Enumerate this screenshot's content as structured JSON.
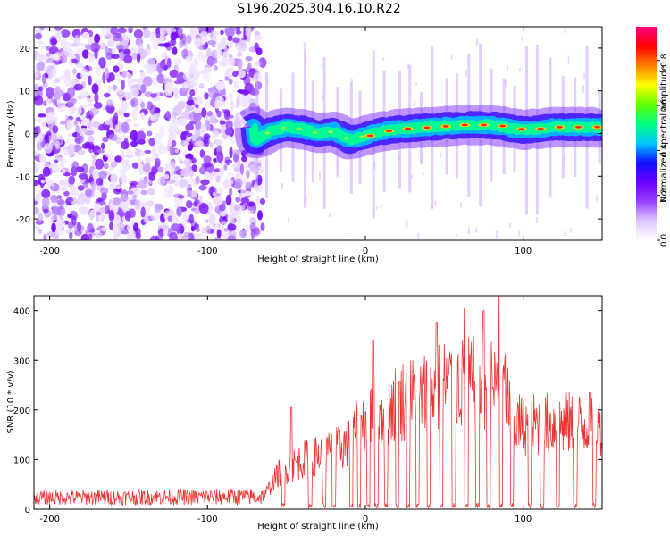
{
  "title": "S196.2025.304.16.10.R22",
  "chart_data": [
    {
      "type": "heatmap",
      "xlabel": "Height of straight line (km)",
      "ylabel": "Frequency (Hz)",
      "xlim": [
        -210,
        150
      ],
      "ylim": [
        -25,
        25
      ],
      "xticks": [
        -200,
        -100,
        0,
        100
      ],
      "yticks": [
        -20,
        -10,
        0,
        10,
        20
      ],
      "colorbar": {
        "label": "Normalized spectral amplitude",
        "range": [
          0.0,
          0.95
        ],
        "ticks": [
          0.0,
          0.2,
          0.4,
          0.6,
          0.8
        ],
        "tick_labels": [
          "0.0",
          "0.2",
          "0.4",
          "0.6",
          "0.8"
        ],
        "colors": [
          "#ffffff",
          "#e0c8ff",
          "#9a40ff",
          "#6a00ff",
          "#1010ff",
          "#00c8ff",
          "#00ff80",
          "#60ff00",
          "#ffff00",
          "#ff8000",
          "#ff0000",
          "#ff0080"
        ]
      },
      "features": {
        "noise_region_x": [
          -210,
          -65
        ],
        "signal_start_x": -72,
        "signal_trace": [
          {
            "x": -70,
            "f": -1.5
          },
          {
            "x": -60,
            "f": 0.5
          },
          {
            "x": -50,
            "f": 1.5
          },
          {
            "x": -40,
            "f": 1.0
          },
          {
            "x": -30,
            "f": 0.0
          },
          {
            "x": -20,
            "f": 0.5
          },
          {
            "x": -10,
            "f": -1.5
          },
          {
            "x": 0,
            "f": -0.5
          },
          {
            "x": 10,
            "f": 0.5
          },
          {
            "x": 20,
            "f": 1.0
          },
          {
            "x": 40,
            "f": 1.5
          },
          {
            "x": 60,
            "f": 2.0
          },
          {
            "x": 80,
            "f": 2.0
          },
          {
            "x": 100,
            "f": 0.8
          },
          {
            "x": 120,
            "f": 1.5
          },
          {
            "x": 140,
            "f": 1.5
          },
          {
            "x": 150,
            "f": 1.5
          }
        ]
      }
    },
    {
      "type": "line",
      "xlabel": "Height of straight line (km)",
      "ylabel": "SNR (10 * v/v)",
      "xlim": [
        -210,
        150
      ],
      "ylim": [
        0,
        430
      ],
      "xticks": [
        -200,
        -100,
        0,
        100
      ],
      "yticks": [
        0,
        100,
        200,
        300,
        400
      ],
      "color": "#ee3333",
      "envelope": [
        {
          "x": -210,
          "snr": 20
        },
        {
          "x": -65,
          "snr": 25
        },
        {
          "x": -55,
          "snr": 80
        },
        {
          "x": -40,
          "snr": 110
        },
        {
          "x": -20,
          "snr": 130
        },
        {
          "x": -10,
          "snr": 150
        },
        {
          "x": 0,
          "snr": 200
        },
        {
          "x": 20,
          "snr": 240
        },
        {
          "x": 40,
          "snr": 260
        },
        {
          "x": 50,
          "snr": 280
        },
        {
          "x": 70,
          "snr": 280
        },
        {
          "x": 90,
          "snr": 270
        },
        {
          "x": 92,
          "snr": 190
        },
        {
          "x": 120,
          "snr": 190
        },
        {
          "x": 150,
          "snr": 190
        }
      ],
      "peaks": [
        {
          "x": -47,
          "snr": 205
        },
        {
          "x": 5,
          "snr": 340
        },
        {
          "x": 45,
          "snr": 375
        },
        {
          "x": 63,
          "snr": 405
        },
        {
          "x": 75,
          "snr": 400
        },
        {
          "x": 85,
          "snr": 430
        },
        {
          "x": 142,
          "snr": 235
        }
      ],
      "dropouts_x": [
        -52,
        -35,
        -26,
        -20,
        -9,
        -4,
        2,
        7,
        13,
        20,
        27,
        33,
        40,
        48,
        56,
        64,
        71,
        78,
        86,
        93,
        104,
        112,
        122,
        133,
        145
      ]
    }
  ]
}
